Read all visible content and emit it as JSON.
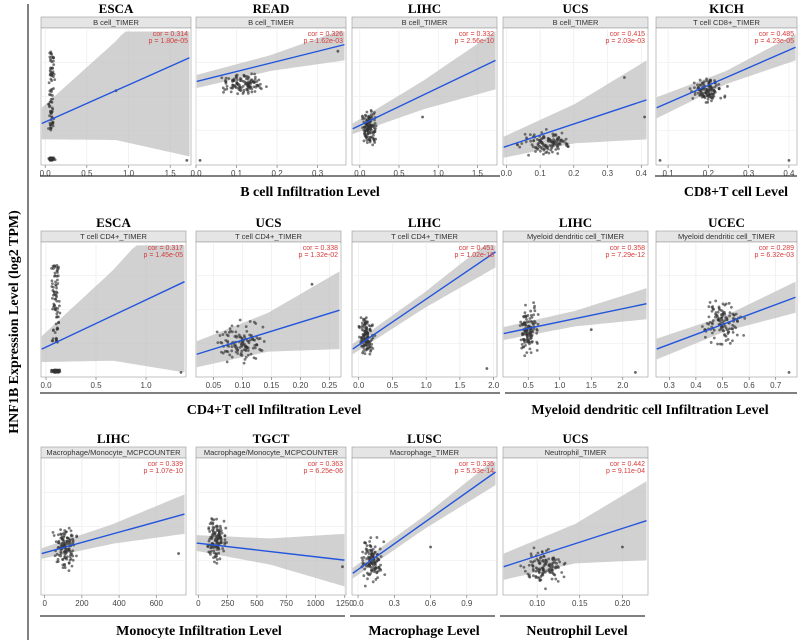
{
  "y_axis_label": "HNF1B Expression Level (log2 TPM)",
  "colors": {
    "points": "#333333",
    "line": "#2255dd",
    "band": "#bdbdbd",
    "stats": "#d63b3b",
    "strip": "#e5e5e5",
    "grid": "#e9e9e9"
  },
  "groups": [
    {
      "label": "B cell Infiltration Level"
    },
    {
      "label": "CD8+T cell Level"
    },
    {
      "label": "CD4+T cell Infiltration Level"
    },
    {
      "label": "Myeloid dendritic cell Infiltration Level"
    },
    {
      "label": "Monocyte Infiltration Level"
    },
    {
      "label": "Macrophage Level"
    },
    {
      "label": "Neutrophil Level"
    }
  ],
  "chart_data": [
    {
      "type": "scatter",
      "title": "ESCA",
      "strip": "B cell_TIMER",
      "cor": "cor = 0.314",
      "p": "p = 1.80e-05",
      "xlim": [
        -0.05,
        1.75
      ],
      "xticks": [
        0,
        0.5,
        1,
        1.5
      ],
      "tick_labels": [
        "0.0",
        "0.5",
        "1.0",
        "1.5"
      ],
      "cluster": {
        "center": 0.08,
        "spread": 0.05,
        "floor": true
      },
      "fit": [
        0.3,
        0.8
      ],
      "band": [
        0.12,
        0.75
      ],
      "outliers": [
        [
          0.85,
          0.55
        ],
        [
          1.7,
          0.02
        ]
      ]
    },
    {
      "type": "scatter",
      "title": "READ",
      "strip": "B cell_TIMER",
      "cor": "cor = 0.326",
      "p": "p = 1.62e-03",
      "xlim": [
        0,
        0.37
      ],
      "xticks": [
        0,
        0.1,
        0.2,
        0.3
      ],
      "tick_labels": [
        "0.0",
        "0.1",
        "0.2",
        "0.3"
      ],
      "cluster": {
        "center": 0.12,
        "spread": 0.07,
        "floor": false,
        "ycenter": 0.6,
        "yspread": 0.1
      },
      "fit": [
        0.62,
        0.9
      ],
      "band": [
        0.05,
        0.12
      ],
      "outliers": [
        [
          0.01,
          0.02
        ],
        [
          0.35,
          0.85
        ]
      ]
    },
    {
      "type": "scatter",
      "title": "LIHC",
      "strip": "B cell_TIMER",
      "cor": "cor = 0.332",
      "p": "p = 2.56e-10",
      "xlim": [
        -0.1,
        1.75
      ],
      "xticks": [
        0,
        0.5,
        1,
        1.5
      ],
      "tick_labels": [
        "0.0",
        "0.5",
        "1.0",
        "1.5"
      ],
      "cluster": {
        "center": 0.12,
        "spread": 0.12,
        "floor": false,
        "ycenter": 0.28,
        "yspread": 0.2
      },
      "fit": [
        0.26,
        0.78
      ],
      "band": [
        0.04,
        0.22
      ],
      "outliers": [
        [
          0.8,
          0.35
        ]
      ]
    },
    {
      "type": "scatter",
      "title": "UCS",
      "strip": "B cell_TIMER",
      "cor": "cor = 0.415",
      "p": "p = 2.03e-03",
      "xlim": [
        -0.01,
        0.42
      ],
      "xticks": [
        0,
        0.1,
        0.2,
        0.3,
        0.4
      ],
      "tick_labels": [
        "0.0",
        "0.1",
        "0.2",
        "0.3",
        "0.4"
      ],
      "cluster": {
        "center": 0.12,
        "spread": 0.1,
        "floor": false,
        "ycenter": 0.15,
        "yspread": 0.12
      },
      "fit": [
        0.12,
        0.48
      ],
      "band": [
        0.08,
        0.3
      ],
      "outliers": [
        [
          0.41,
          0.35
        ],
        [
          0.35,
          0.65
        ]
      ]
    },
    {
      "type": "scatter",
      "title": "KICH",
      "strip": "T cell CD8+_TIMER",
      "cor": "cor = 0.485",
      "p": "p = 4.23e-05",
      "xlim": [
        0.07,
        0.42
      ],
      "xticks": [
        0.1,
        0.2,
        0.3,
        0.4
      ],
      "tick_labels": [
        "0.1",
        "0.2",
        "0.3",
        "0.4"
      ],
      "cluster": {
        "center": 0.2,
        "spread": 0.05,
        "floor": false,
        "ycenter": 0.55,
        "yspread": 0.12
      },
      "fit": [
        0.42,
        0.88
      ],
      "band": [
        0.08,
        0.1
      ],
      "outliers": [
        [
          0.08,
          0.02
        ],
        [
          0.4,
          0.02
        ]
      ]
    },
    {
      "type": "scatter",
      "title": "ESCA",
      "strip": "T cell CD4+_TIMER",
      "cor": "cor = 0.317",
      "p": "p = 1.45e-05",
      "xlim": [
        -0.05,
        1.4
      ],
      "xticks": [
        0,
        0.5,
        1
      ],
      "tick_labels": [
        "0.0",
        "0.5",
        "1.0"
      ],
      "cluster": {
        "center": 0.1,
        "spread": 0.06,
        "floor": true
      },
      "fit": [
        0.2,
        0.72
      ],
      "band": [
        0.1,
        0.7
      ],
      "outliers": [
        [
          1.35,
          0.02
        ]
      ]
    },
    {
      "type": "scatter",
      "title": "UCS",
      "strip": "T cell CD4+_TIMER",
      "cor": "cor = 0.338",
      "p": "p = 1.32e-02",
      "xlim": [
        0.02,
        0.27
      ],
      "xticks": [
        0.05,
        0.1,
        0.15,
        0.2,
        0.25
      ],
      "tick_labels": [
        "0.05",
        "0.10",
        "0.15",
        "0.20",
        "0.25"
      ],
      "cluster": {
        "center": 0.1,
        "spread": 0.06,
        "floor": false,
        "ycenter": 0.25,
        "yspread": 0.2
      },
      "fit": [
        0.16,
        0.5
      ],
      "band": [
        0.1,
        0.3
      ],
      "outliers": [
        [
          0.22,
          0.7
        ]
      ]
    },
    {
      "type": "scatter",
      "title": "LIHC",
      "strip": "T cell CD4+_TIMER",
      "cor": "cor = 0.451",
      "p": "p = 1.02e-18",
      "xlim": [
        -0.1,
        2.05
      ],
      "xticks": [
        0,
        0.5,
        1,
        1.5,
        2
      ],
      "tick_labels": [
        "0.0",
        "0.5",
        "1.0",
        "1.5",
        "2.0"
      ],
      "cluster": {
        "center": 0.12,
        "spread": 0.15,
        "floor": false,
        "ycenter": 0.3,
        "yspread": 0.2
      },
      "fit": [
        0.2,
        0.95
      ],
      "band": [
        0.04,
        0.12
      ],
      "outliers": [
        [
          1.9,
          0.05
        ]
      ]
    },
    {
      "type": "scatter",
      "title": "LIHC",
      "strip": "Myeloid dendritic cell_TIMER",
      "cor": "cor = 0.358",
      "p": "p = 7.29e-12",
      "xlim": [
        0.1,
        2.4
      ],
      "xticks": [
        0.5,
        1,
        1.5,
        2
      ],
      "tick_labels": [
        "0.5",
        "1.0",
        "1.5",
        "2.0"
      ],
      "cluster": {
        "center": 0.5,
        "spread": 0.2,
        "floor": false,
        "ycenter": 0.35,
        "yspread": 0.25
      },
      "fit": [
        0.32,
        0.55
      ],
      "band": [
        0.05,
        0.12
      ],
      "outliers": [
        [
          2.2,
          0.02
        ],
        [
          1.5,
          0.35
        ]
      ]
    },
    {
      "type": "scatter",
      "title": "UCEC",
      "strip": "Myeloid dendritic cell_TIMER",
      "cor": "cor = 0.289",
      "p": "p = 6.32e-03",
      "xlim": [
        0.25,
        0.78
      ],
      "xticks": [
        0.3,
        0.4,
        0.5,
        0.6,
        0.7
      ],
      "tick_labels": [
        "0.3",
        "0.4",
        "0.5",
        "0.6",
        "0.7"
      ],
      "cluster": {
        "center": 0.5,
        "spread": 0.1,
        "floor": false,
        "ycenter": 0.4,
        "yspread": 0.22
      },
      "fit": [
        0.2,
        0.6
      ],
      "band": [
        0.08,
        0.12
      ],
      "outliers": [
        [
          0.75,
          0.02
        ]
      ]
    },
    {
      "type": "scatter",
      "title": "LIHC",
      "strip": "Macrophage/Monocyte_MCPCOUNTER",
      "cor": "cor = 0.339",
      "p": "p = 1.07e-10",
      "xlim": [
        -20,
        760
      ],
      "xticks": [
        0,
        200,
        400,
        600
      ],
      "tick_labels": [
        "0",
        "200",
        "400",
        "600"
      ],
      "cluster": {
        "center": 110,
        "spread": 80,
        "floor": false,
        "ycenter": 0.35,
        "yspread": 0.22
      },
      "fit": [
        0.3,
        0.6
      ],
      "band": [
        0.04,
        0.15
      ],
      "outliers": [
        [
          720,
          0.3
        ]
      ]
    },
    {
      "type": "scatter",
      "title": "TGCT",
      "strip": "Macrophage/Monocyte_MCPCOUNTER",
      "cor": "cor = 0.363",
      "p": "p = 6.25e-06",
      "xlim": [
        -20,
        1260
      ],
      "xticks": [
        0,
        250,
        500,
        750,
        1000,
        1250
      ],
      "tick_labels": [
        "0",
        "250",
        "500",
        "750",
        "1000",
        "1250"
      ],
      "cluster": {
        "center": 150,
        "spread": 120,
        "floor": false,
        "ycenter": 0.4,
        "yspread": 0.25
      },
      "fit": [
        0.38,
        0.25
      ],
      "band": [
        0.06,
        0.2
      ],
      "outliers": [
        [
          1230,
          0.2
        ]
      ]
    },
    {
      "type": "scatter",
      "title": "LUSC",
      "strip": "Macrophage_TIMER",
      "cor": "cor = 0.335",
      "p": "p = 5.53e-14",
      "xlim": [
        -0.05,
        1.15
      ],
      "xticks": [
        0,
        0.3,
        0.6,
        0.9
      ],
      "tick_labels": [
        "0.0",
        "0.3",
        "0.6",
        "0.9"
      ],
      "cluster": {
        "center": 0.12,
        "spread": 0.12,
        "floor": false,
        "ycenter": 0.25,
        "yspread": 0.22
      },
      "fit": [
        0.15,
        0.92
      ],
      "band": [
        0.04,
        0.1
      ],
      "outliers": [
        [
          0.6,
          0.35
        ]
      ]
    },
    {
      "type": "scatter",
      "title": "UCS",
      "strip": "Neutrophil_TIMER",
      "cor": "cor = 0.442",
      "p": "p = 9.11e-04",
      "xlim": [
        0.06,
        0.23
      ],
      "xticks": [
        0.1,
        0.15,
        0.2
      ],
      "tick_labels": [
        "0.10",
        "0.15",
        "0.20"
      ],
      "cluster": {
        "center": 0.11,
        "spread": 0.03,
        "floor": false,
        "ycenter": 0.2,
        "yspread": 0.18
      },
      "fit": [
        0.2,
        0.55
      ],
      "band": [
        0.1,
        0.3
      ],
      "outliers": [
        [
          0.2,
          0.35
        ]
      ]
    }
  ]
}
